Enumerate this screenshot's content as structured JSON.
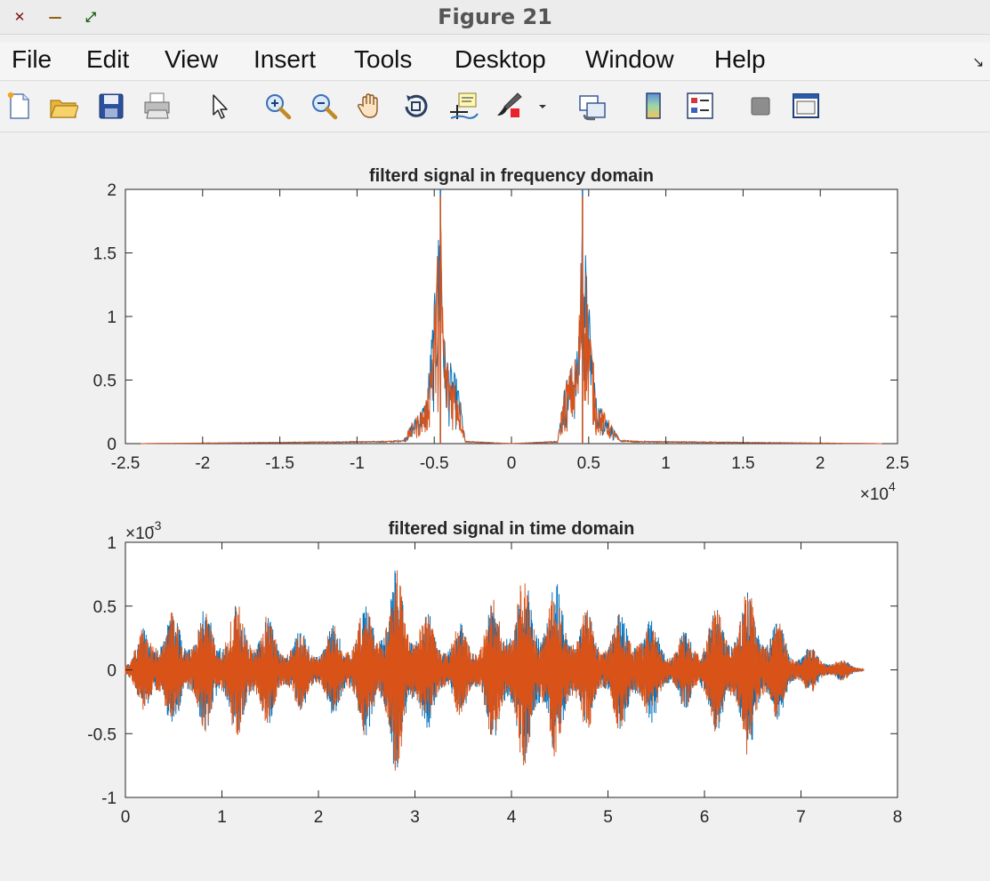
{
  "window": {
    "title": "Figure 21",
    "controls": [
      {
        "name": "close",
        "color": "#ee5b55",
        "glyph": "✕"
      },
      {
        "name": "minimize",
        "color": "#f5be4f",
        "glyph": "—"
      },
      {
        "name": "maximize",
        "color": "#5ec13f",
        "glyph": "⤢"
      }
    ]
  },
  "menu": {
    "items": [
      "File",
      "Edit",
      "View",
      "Insert",
      "Tools",
      "Desktop",
      "Window",
      "Help"
    ],
    "dock_glyph": "↘"
  },
  "toolbar": {
    "icons": [
      "new-figure-icon",
      "open-file-icon",
      "save-icon",
      "print-icon",
      "edit-plot-arrow-icon",
      "zoom-in-icon",
      "zoom-out-icon",
      "pan-hand-icon",
      "rotate-3d-icon",
      "data-cursor-icon",
      "brush-icon",
      "brush-dropdown-icon",
      "link-plot-icon",
      "colorbar-icon",
      "legend-icon",
      "hide-plot-tools-icon",
      "show-plot-tools-icon"
    ]
  },
  "colors": {
    "series1": "#0072bd",
    "series2": "#d95319"
  },
  "chart_data": [
    {
      "type": "line",
      "title": "filterd signal in frequency domain",
      "xlim": [
        -25000,
        25000
      ],
      "ylim": [
        0,
        2
      ],
      "x_ticks": [
        -2.5,
        -2,
        -1.5,
        -1,
        -0.5,
        0,
        0.5,
        1,
        1.5,
        2,
        2.5
      ],
      "y_ticks": [
        "0",
        "0.5",
        "1",
        "1.5",
        "2"
      ],
      "x_exponent": "×10",
      "x_exponent_power": "4",
      "grid": false,
      "series": [
        {
          "color": "#0072bd",
          "x": [
            -24000,
            -8000,
            -7000,
            -6500,
            -5500,
            -4900,
            -4600,
            -4300,
            -3500,
            -3200,
            -3000,
            0,
            3000,
            3200,
            3500,
            4300,
            4600,
            4900,
            5500,
            6500,
            7000,
            8000,
            24000
          ],
          "y": [
            0,
            0.02,
            0.03,
            0.15,
            0.35,
            1.3,
            2.0,
            0.75,
            0.5,
            0.25,
            0.02,
            0,
            0.02,
            0.25,
            0.5,
            0.75,
            2.0,
            1.3,
            0.35,
            0.15,
            0.03,
            0.02,
            0
          ]
        },
        {
          "color": "#d95319",
          "x": [
            -24000,
            -8000,
            -7000,
            -6500,
            -5500,
            -4900,
            -4600,
            -4300,
            -3500,
            -3200,
            -3000,
            0,
            3000,
            3200,
            3500,
            4300,
            4600,
            4900,
            5500,
            6500,
            7000,
            8000,
            24000
          ],
          "y": [
            0,
            0.02,
            0.03,
            0.15,
            0.35,
            1.3,
            1.95,
            0.75,
            0.5,
            0.25,
            0.02,
            0,
            0.02,
            0.25,
            0.5,
            0.75,
            1.95,
            1.3,
            0.35,
            0.15,
            0.03,
            0.02,
            0
          ]
        }
      ]
    },
    {
      "type": "line",
      "title": "filtered signal in time domain",
      "xlim": [
        0,
        8
      ],
      "ylim": [
        -0.001,
        0.001
      ],
      "x_ticks": [
        "0",
        "1",
        "2",
        "3",
        "4",
        "5",
        "6",
        "7",
        "8"
      ],
      "y_ticks": [
        "-1",
        "-0.5",
        "0",
        "0.5",
        "1"
      ],
      "y_exponent": "×10",
      "y_exponent_power": "-3",
      "grid": false,
      "signal_duration": 7.65,
      "series": [
        {
          "color": "#0072bd",
          "x": [
            0,
            0.3,
            0.6,
            0.9,
            1.3,
            1.6,
            2.0,
            2.4,
            2.8,
            3.2,
            3.6,
            4.0,
            4.4,
            4.9,
            5.3,
            5.7,
            6.1,
            6.5,
            6.9,
            7.3,
            7.65
          ],
          "y": [
            0.0001,
            0.0005,
            0.00045,
            0.0005,
            0.00055,
            0.00035,
            0.0003,
            0.00045,
            0.00085,
            0.0004,
            0.00035,
            0.00075,
            0.00075,
            0.0004,
            0.00055,
            0.00025,
            0.0005,
            0.0007,
            0.00025,
            0.00012,
            3e-05
          ]
        },
        {
          "color": "#d95319",
          "x": [
            0,
            0.3,
            0.6,
            0.9,
            1.3,
            1.6,
            2.0,
            2.4,
            2.8,
            3.2,
            3.6,
            4.0,
            4.4,
            4.9,
            5.3,
            5.7,
            6.1,
            6.5,
            6.9,
            7.3,
            7.65
          ],
          "y": [
            0.0001,
            0.0005,
            0.00045,
            0.0005,
            0.00055,
            0.00035,
            0.0003,
            0.00045,
            0.00085,
            0.0004,
            0.00035,
            0.00075,
            0.00075,
            0.0004,
            0.00055,
            0.00025,
            0.0005,
            0.0007,
            0.00025,
            0.00012,
            3e-05
          ]
        }
      ]
    }
  ]
}
